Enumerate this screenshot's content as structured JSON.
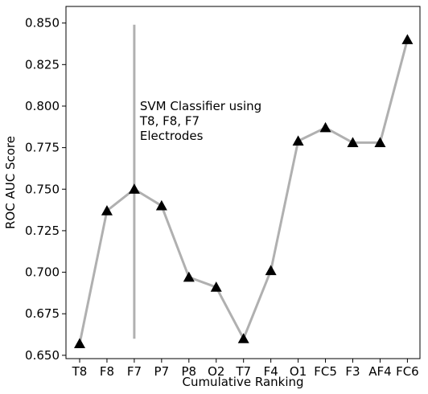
{
  "chart_data": {
    "type": "line",
    "title": "",
    "xlabel": "Cumulative Ranking",
    "ylabel": "ROC AUC Score",
    "categories": [
      "T8",
      "F8",
      "F7",
      "P7",
      "P8",
      "O2",
      "T7",
      "F4",
      "O1",
      "FC5",
      "F3",
      "AF4",
      "FC6"
    ],
    "series": [
      {
        "values": [
          0.657,
          0.737,
          0.75,
          0.74,
          0.697,
          0.691,
          0.66,
          0.701,
          0.779,
          0.787,
          0.778,
          0.778,
          0.84
        ],
        "line_color": "#b0b0b0",
        "marker": "triangle",
        "marker_color": "#000000"
      }
    ],
    "ylim": [
      0.648,
      0.86
    ],
    "yticks": [
      "0.650",
      "0.675",
      "0.700",
      "0.725",
      "0.750",
      "0.775",
      "0.800",
      "0.825",
      "0.850"
    ],
    "grid": false,
    "vline": {
      "category": "F7",
      "y_range": [
        0.66,
        0.849
      ],
      "color": "#b0b0b0"
    },
    "annotation": {
      "lines": [
        "SVM Classifier using",
        "T8, F8, F7",
        "Electrodes"
      ],
      "x_category": "F7",
      "y": 0.8
    }
  }
}
